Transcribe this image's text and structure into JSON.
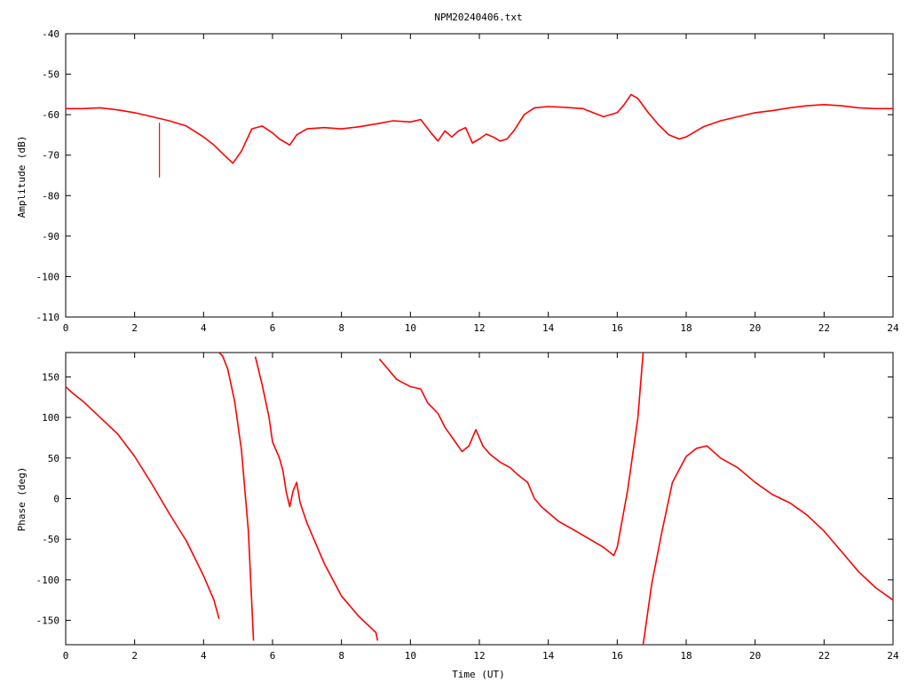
{
  "colors": {
    "trace": "#ff0000",
    "axes": "#000000",
    "background": "#ffffff"
  },
  "chart_data": [
    {
      "type": "line",
      "title": "NPM20240406.txt",
      "xlabel": "",
      "ylabel": "Amplitude (dB)",
      "xlim": [
        0,
        24
      ],
      "ylim": [
        -110,
        -40
      ],
      "grid": false,
      "xticks": [
        "0",
        "2",
        "4",
        "6",
        "8",
        "10",
        "12",
        "14",
        "16",
        "18",
        "20",
        "22",
        "24"
      ],
      "yticks": [
        "-40",
        "-50",
        "-60",
        "-70",
        "-80",
        "-90",
        "-100",
        "-110"
      ],
      "series": [
        {
          "x": [
            0,
            0.5,
            1,
            1.5,
            2,
            2.5,
            3,
            3.5,
            4,
            4.3,
            4.6,
            4.85,
            5.1,
            5.4,
            5.7,
            6,
            6.2,
            6.5,
            6.7,
            7,
            7.5,
            8,
            8.5,
            9,
            9.5,
            10,
            10.3,
            10.6,
            10.8,
            11,
            11.2,
            11.4,
            11.6,
            11.8,
            12,
            12.2,
            12.4,
            12.6,
            12.8,
            13,
            13.3,
            13.6,
            14,
            14.5,
            15,
            15.3,
            15.6,
            16,
            16.2,
            16.4,
            16.6,
            16.9,
            17.2,
            17.5,
            17.8,
            18,
            18.5,
            19,
            19.5,
            20,
            20.5,
            21,
            21.5,
            22,
            22.5,
            23,
            23.5,
            24
          ],
          "y": [
            -58.5,
            -58.5,
            -58.3,
            -58.8,
            -59.5,
            -60.5,
            -61.5,
            -62.8,
            -65.5,
            -67.5,
            -70,
            -72,
            -69,
            -63.5,
            -62.8,
            -64.5,
            -66,
            -67.5,
            -65,
            -63.5,
            -63.2,
            -63.5,
            -63,
            -62.3,
            -61.5,
            -61.8,
            -61.2,
            -64.5,
            -66.5,
            -64,
            -65.5,
            -64,
            -63.2,
            -67,
            -66,
            -64.8,
            -65.5,
            -66.5,
            -66,
            -64,
            -60,
            -58.3,
            -58,
            -58.2,
            -58.5,
            -59.5,
            -60.5,
            -59.5,
            -57.5,
            -55,
            -56,
            -59.5,
            -62.5,
            -65,
            -66,
            -65.5,
            -63,
            -61.5,
            -60.5,
            -59.5,
            -59,
            -58.3,
            -57.8,
            -57.5,
            -57.8,
            -58.3,
            -58.5,
            -58.5
          ],
          "spike": {
            "x": 2.72,
            "y": [
              -62,
              -75.5
            ]
          }
        }
      ]
    },
    {
      "type": "line",
      "title": "",
      "xlabel": "Time (UT)",
      "ylabel": "Phase (deg)",
      "xlim": [
        0,
        24
      ],
      "ylim": [
        -180,
        180
      ],
      "grid": false,
      "xticks": [
        "0",
        "2",
        "4",
        "6",
        "8",
        "10",
        "12",
        "14",
        "16",
        "18",
        "20",
        "22",
        "24"
      ],
      "yticks": [
        "150",
        "100",
        "50",
        "0",
        "-50",
        "-100",
        "-150"
      ],
      "ytick_values": [
        150,
        100,
        50,
        0,
        -50,
        -100,
        -150
      ],
      "series": [
        {
          "x": [
            0,
            0.2,
            0.5,
            0.8,
            1,
            1.5,
            2,
            2.5,
            3,
            3.5,
            4,
            4.3,
            4.45,
            null,
            4.45,
            4.55,
            4.7,
            4.9,
            5.1,
            5.3,
            5.45,
            null,
            5.5,
            5.7,
            5.9,
            6,
            6.2,
            6.3,
            6.4,
            6.5,
            6.6,
            6.7,
            6.8,
            7,
            7.5,
            8,
            8.5,
            9,
            9.05,
            null,
            9.1,
            9.3,
            9.6,
            10,
            10.3,
            10.5,
            10.8,
            11,
            11.3,
            11.5,
            11.7,
            11.9,
            12.1,
            12.3,
            12.6,
            12.9,
            13.1,
            13.4,
            13.6,
            13.8,
            14.3,
            14.8,
            15.2,
            15.6,
            15.9,
            16,
            16.3,
            16.6,
            16.75,
            null,
            16.75,
            17,
            17.3,
            17.6,
            18,
            18.3,
            18.6,
            19,
            19.5,
            20,
            20.5,
            21,
            21.5,
            22,
            22.5,
            23,
            23.5,
            24
          ],
          "y": [
            138,
            130,
            120,
            108,
            100,
            80,
            52,
            18,
            -18,
            -52,
            -95,
            -125,
            -148,
            null,
            180,
            176,
            160,
            120,
            60,
            -40,
            -175,
            null,
            175,
            140,
            100,
            70,
            50,
            35,
            8,
            -10,
            10,
            20,
            -5,
            -30,
            -80,
            -120,
            -145,
            -165,
            -175,
            null,
            172,
            162,
            147,
            138,
            135,
            118,
            105,
            88,
            70,
            58,
            65,
            85,
            65,
            55,
            45,
            38,
            30,
            20,
            0,
            -10,
            -28,
            -40,
            -50,
            -60,
            -70,
            -60,
            10,
            100,
            180,
            null,
            -180,
            -105,
            -40,
            20,
            52,
            62,
            65,
            50,
            38,
            20,
            5,
            -5,
            -20,
            -40,
            -65,
            -90,
            -110,
            -125
          ]
        }
      ]
    }
  ]
}
